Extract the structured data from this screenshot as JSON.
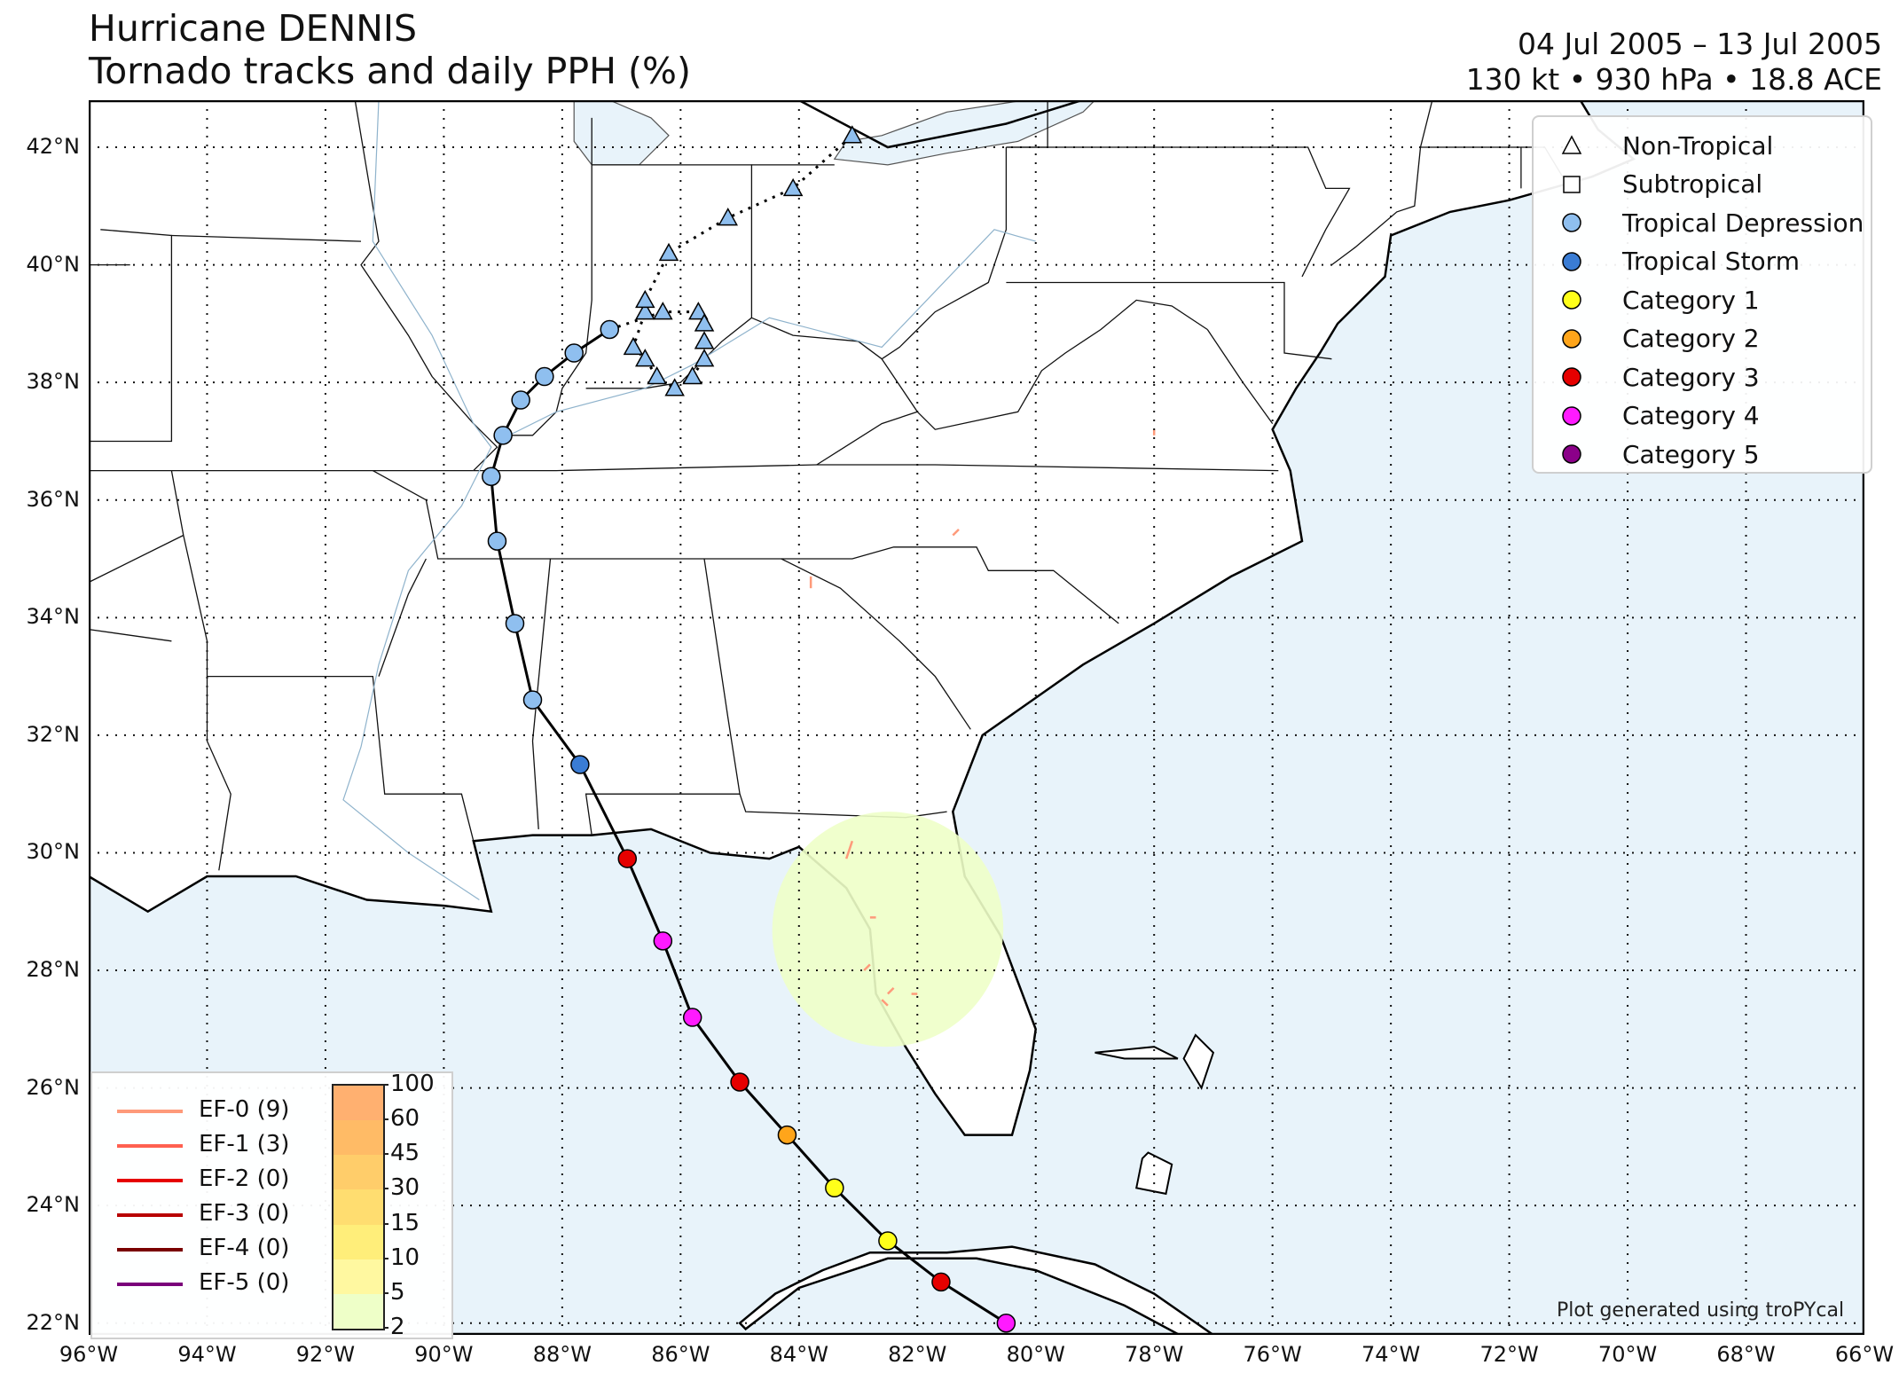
{
  "title": {
    "line1": "Hurricane DENNIS",
    "line2": "Tornado tracks and daily PPH (%)"
  },
  "info": {
    "dates": "04 Jul 2005 – 13 Jul 2005",
    "stats": "130 kt • 930 hPa • 18.8 ACE"
  },
  "map": {
    "lon_range": [
      -96,
      -66
    ],
    "lat_range": [
      21.8,
      42.8
    ],
    "ocean_color": "#e8f3fa",
    "land_color": "#ffffff",
    "x_ticks": [
      "96°W",
      "94°W",
      "92°W",
      "90°W",
      "88°W",
      "86°W",
      "84°W",
      "82°W",
      "80°W",
      "78°W",
      "76°W",
      "74°W",
      "72°W",
      "70°W",
      "68°W",
      "66°W"
    ],
    "y_ticks": [
      "22°N",
      "24°N",
      "26°N",
      "28°N",
      "30°N",
      "32°N",
      "34°N",
      "36°N",
      "38°N",
      "40°N",
      "42°N"
    ],
    "gridlines": true
  },
  "legend": {
    "items": [
      {
        "label": "Non-Tropical",
        "symbol": "triangle",
        "color": "#ffffff"
      },
      {
        "label": "Subtropical",
        "symbol": "square",
        "color": "#ffffff"
      },
      {
        "label": "Tropical Depression",
        "symbol": "circle",
        "color": "#8fbfef"
      },
      {
        "label": "Tropical Storm",
        "symbol": "circle",
        "color": "#3a7cd4"
      },
      {
        "label": "Category 1",
        "symbol": "circle",
        "color": "#ffff1a"
      },
      {
        "label": "Category 2",
        "symbol": "circle",
        "color": "#ffa51a"
      },
      {
        "label": "Category 3",
        "symbol": "circle",
        "color": "#e60000"
      },
      {
        "label": "Category 4",
        "symbol": "circle",
        "color": "#ff1aff"
      },
      {
        "label": "Category 5",
        "symbol": "circle",
        "color": "#8b0089"
      }
    ]
  },
  "ef_legend": {
    "items": [
      {
        "label": "EF-0 (9)",
        "color": "#fe9a7a"
      },
      {
        "label": "EF-1 (3)",
        "color": "#ff6050"
      },
      {
        "label": "EF-2 (0)",
        "color": "#e60000"
      },
      {
        "label": "EF-3 (0)",
        "color": "#b80000"
      },
      {
        "label": "EF-4 (0)",
        "color": "#7a0000"
      },
      {
        "label": "EF-5 (0)",
        "color": "#7a007a"
      }
    ]
  },
  "colorbar": {
    "ticks": [
      "2",
      "5",
      "10",
      "15",
      "30",
      "45",
      "60",
      "100"
    ],
    "colors": [
      "#eeffc8",
      "#fff8a0",
      "#ffee7a",
      "#ffdd70",
      "#ffcd6a",
      "#ffbb66",
      "#ffb070"
    ]
  },
  "credit": "Plot generated using troPYcal",
  "track": {
    "points": [
      {
        "lon": -80.5,
        "lat": 22.0,
        "cat": "Category 4"
      },
      {
        "lon": -81.6,
        "lat": 22.7,
        "cat": "Category 3"
      },
      {
        "lon": -82.5,
        "lat": 23.4,
        "cat": "Category 1"
      },
      {
        "lon": -83.4,
        "lat": 24.3,
        "cat": "Category 1"
      },
      {
        "lon": -84.2,
        "lat": 25.2,
        "cat": "Category 2"
      },
      {
        "lon": -85.0,
        "lat": 26.1,
        "cat": "Category 3"
      },
      {
        "lon": -85.8,
        "lat": 27.2,
        "cat": "Category 4"
      },
      {
        "lon": -86.3,
        "lat": 28.5,
        "cat": "Category 4"
      },
      {
        "lon": -86.9,
        "lat": 29.9,
        "cat": "Category 3"
      },
      {
        "lon": -87.7,
        "lat": 31.5,
        "cat": "Tropical Storm"
      },
      {
        "lon": -88.5,
        "lat": 32.6,
        "cat": "Tropical Depression"
      },
      {
        "lon": -88.8,
        "lat": 33.9,
        "cat": "Tropical Depression"
      },
      {
        "lon": -89.1,
        "lat": 35.3,
        "cat": "Tropical Depression"
      },
      {
        "lon": -89.2,
        "lat": 36.4,
        "cat": "Tropical Depression"
      },
      {
        "lon": -89.0,
        "lat": 37.1,
        "cat": "Tropical Depression"
      },
      {
        "lon": -88.7,
        "lat": 37.7,
        "cat": "Tropical Depression"
      },
      {
        "lon": -88.3,
        "lat": 38.1,
        "cat": "Tropical Depression"
      },
      {
        "lon": -87.8,
        "lat": 38.5,
        "cat": "Tropical Depression"
      },
      {
        "lon": -87.2,
        "lat": 38.9,
        "cat": "Tropical Depression"
      }
    ],
    "extratropical": [
      {
        "lon": -86.3,
        "lat": 39.2
      },
      {
        "lon": -85.7,
        "lat": 39.2
      },
      {
        "lon": -85.6,
        "lat": 39.0
      },
      {
        "lon": -85.6,
        "lat": 38.7
      },
      {
        "lon": -85.6,
        "lat": 38.4
      },
      {
        "lon": -85.8,
        "lat": 38.1
      },
      {
        "lon": -86.1,
        "lat": 37.9
      },
      {
        "lon": -86.4,
        "lat": 38.1
      },
      {
        "lon": -86.6,
        "lat": 38.4
      },
      {
        "lon": -86.8,
        "lat": 38.6
      },
      {
        "lon": -86.6,
        "lat": 39.2
      },
      {
        "lon": -86.6,
        "lat": 39.4
      },
      {
        "lon": -86.2,
        "lat": 40.2
      },
      {
        "lon": -85.2,
        "lat": 40.8
      },
      {
        "lon": -84.1,
        "lat": 41.3
      },
      {
        "lon": -83.1,
        "lat": 42.2
      }
    ]
  }
}
